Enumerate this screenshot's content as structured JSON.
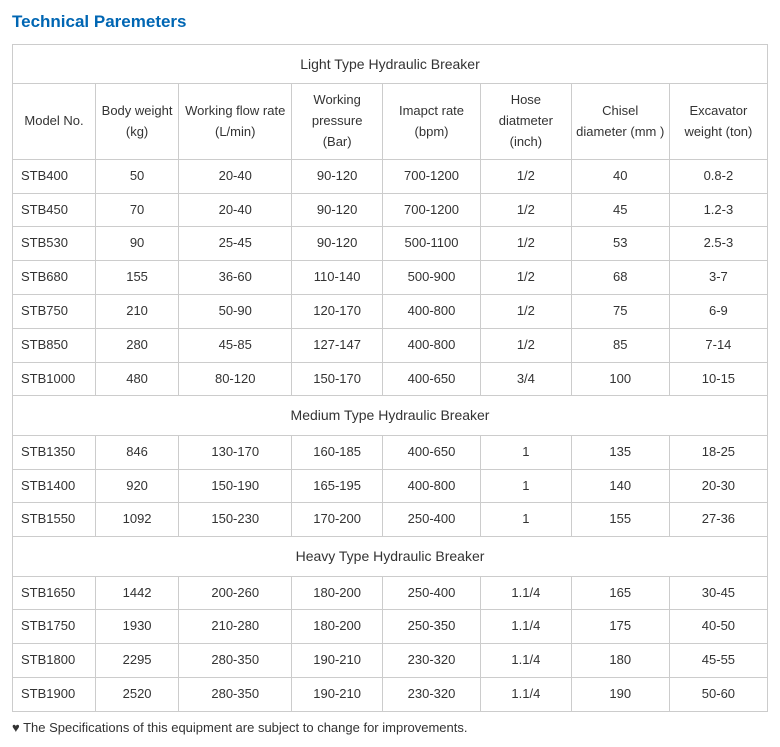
{
  "heading": "Technical Paremeters",
  "columns": [
    "Model No.",
    "Body weight (kg)",
    "Working flow rate (L/min)",
    "Working pressure (Bar)",
    "Imapct rate (bpm)",
    "Hose diatmeter (inch)",
    "Chisel diameter (mm )",
    "Excavator weight (ton)"
  ],
  "sections": [
    {
      "title": "Light Type Hydraulic Breaker",
      "rows": [
        [
          "STB400",
          "50",
          "20-40",
          "90-120",
          "700-1200",
          "1/2",
          "40",
          "0.8-2"
        ],
        [
          "STB450",
          "70",
          "20-40",
          "90-120",
          "700-1200",
          "1/2",
          "45",
          "1.2-3"
        ],
        [
          "STB530",
          "90",
          "25-45",
          "90-120",
          "500-1100",
          "1/2",
          "53",
          "2.5-3"
        ],
        [
          "STB680",
          "155",
          "36-60",
          "110-140",
          "500-900",
          "1/2",
          "68",
          "3-7"
        ],
        [
          "STB750",
          "210",
          "50-90",
          "120-170",
          "400-800",
          "1/2",
          "75",
          "6-9"
        ],
        [
          "STB850",
          "280",
          "45-85",
          "127-147",
          "400-800",
          "1/2",
          "85",
          "7-14"
        ],
        [
          "STB1000",
          "480",
          "80-120",
          "150-170",
          "400-650",
          "3/4",
          "100",
          "10-15"
        ]
      ]
    },
    {
      "title": "Medium Type Hydraulic Breaker",
      "rows": [
        [
          "STB1350",
          "846",
          "130-170",
          "160-185",
          "400-650",
          "1",
          "135",
          "18-25"
        ],
        [
          "STB1400",
          "920",
          "150-190",
          "165-195",
          "400-800",
          "1",
          "140",
          "20-30"
        ],
        [
          "STB1550",
          "1092",
          "150-230",
          "170-200",
          "250-400",
          "1",
          "155",
          "27-36"
        ]
      ]
    },
    {
      "title": "Heavy Type Hydraulic Breaker",
      "rows": [
        [
          "STB1650",
          "1442",
          "200-260",
          "180-200",
          "250-400",
          "1.1/4",
          "165",
          "30-45"
        ],
        [
          "STB1750",
          "1930",
          "210-280",
          "180-200",
          "250-350",
          "1.1/4",
          "175",
          "40-50"
        ],
        [
          "STB1800",
          "2295",
          "280-350",
          "190-210",
          "230-320",
          "1.1/4",
          "180",
          "45-55"
        ],
        [
          "STB1900",
          "2520",
          "280-350",
          "190-210",
          "230-320",
          "1.1/4",
          "190",
          "50-60"
        ]
      ]
    }
  ],
  "footnote": "♥ The Specifications of this equipment are subject to change for improvements.",
  "style": {
    "heading_color": "#0066b3",
    "border_color": "#cccccc",
    "text_color": "#333333",
    "font_family": "Arial",
    "base_fontsize": 13,
    "heading_fontsize": 17,
    "col_widths_pct": [
      11,
      11,
      15,
      12,
      13,
      12,
      13,
      13
    ]
  }
}
